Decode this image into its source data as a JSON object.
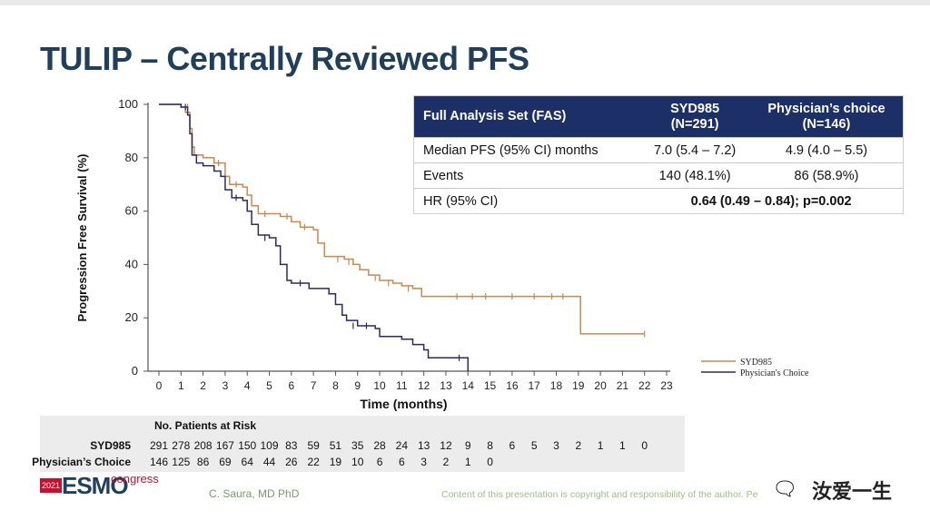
{
  "slide": {
    "title": "TULIP – Centrally Reviewed PFS",
    "author": "C. Saura, MD PhD",
    "copyright": "Content of this presentation is copyright and responsibility of the author. Pe",
    "copyright_tail": "r re-u",
    "logo_year": "2021",
    "logo_name": "ESMO",
    "logo_suffix": "congress",
    "watermark": "汝爱一生"
  },
  "table": {
    "headers": [
      "Full Analysis Set (FAS)",
      "SYD985\n(N=291)",
      "Physician’s choice\n(N=146)"
    ],
    "rows": [
      {
        "label": "Median PFS (95% CI) months",
        "syd": "7.0 (5.4 – 7.2)",
        "pc": "4.9 (4.0 – 5.5)"
      },
      {
        "label": "Events",
        "syd": "140 (48.1%)",
        "pc": "86 (58.9%)"
      },
      {
        "label": "HR (95% CI)",
        "merged": "0.64 (0.49 – 0.84); p=0.002"
      }
    ]
  },
  "chart_data": {
    "type": "line",
    "xlabel": "Time (months)",
    "ylabel": "Progression Free Survival (%)",
    "xlim": [
      0,
      23
    ],
    "ylim": [
      0,
      100
    ],
    "xticks": [
      0,
      1,
      2,
      3,
      4,
      5,
      6,
      7,
      8,
      9,
      10,
      11,
      12,
      13,
      14,
      15,
      16,
      17,
      18,
      19,
      20,
      21,
      22,
      23
    ],
    "yticks": [
      0,
      20,
      40,
      60,
      80,
      100
    ],
    "legend_position": "right",
    "series": [
      {
        "name": "SYD985",
        "color": "#c98a4b",
        "points": [
          [
            0,
            100
          ],
          [
            1,
            99
          ],
          [
            1.2,
            97
          ],
          [
            1.4,
            91
          ],
          [
            1.5,
            84
          ],
          [
            1.6,
            81
          ],
          [
            2,
            80
          ],
          [
            2.5,
            78
          ],
          [
            3,
            73
          ],
          [
            3.2,
            70
          ],
          [
            3.8,
            69
          ],
          [
            4,
            66
          ],
          [
            4.2,
            62
          ],
          [
            4.5,
            59
          ],
          [
            5.5,
            58
          ],
          [
            6,
            56
          ],
          [
            6.4,
            54
          ],
          [
            7,
            53
          ],
          [
            7.2,
            48
          ],
          [
            7.5,
            43
          ],
          [
            8.4,
            42
          ],
          [
            8.8,
            40
          ],
          [
            9.1,
            38
          ],
          [
            9.5,
            36
          ],
          [
            10,
            34
          ],
          [
            10.6,
            33
          ],
          [
            11,
            32
          ],
          [
            11.5,
            31
          ],
          [
            11.9,
            28
          ],
          [
            19.1,
            28
          ],
          [
            19.1,
            14
          ],
          [
            22,
            14
          ]
        ],
        "censors": [
          [
            1.3,
            99
          ],
          [
            2.7,
            78
          ],
          [
            3.5,
            70
          ],
          [
            4.8,
            59
          ],
          [
            5.8,
            58
          ],
          [
            6.6,
            54
          ],
          [
            8.1,
            42
          ],
          [
            8.6,
            41
          ],
          [
            9.8,
            35
          ],
          [
            10.4,
            33
          ],
          [
            11.3,
            31
          ],
          [
            11.9,
            30
          ],
          [
            13.5,
            28
          ],
          [
            14.2,
            28
          ],
          [
            14.8,
            28
          ],
          [
            16,
            28
          ],
          [
            17,
            28
          ],
          [
            17.8,
            28
          ],
          [
            18.3,
            28
          ],
          [
            22,
            14
          ]
        ]
      },
      {
        "name": "Physician's Choice",
        "color": "#2f2a5e",
        "points": [
          [
            0,
            100
          ],
          [
            1,
            99
          ],
          [
            1.3,
            96
          ],
          [
            1.4,
            89
          ],
          [
            1.5,
            81
          ],
          [
            1.7,
            78
          ],
          [
            2,
            77
          ],
          [
            2.5,
            75
          ],
          [
            2.8,
            73
          ],
          [
            3,
            68
          ],
          [
            3.3,
            65
          ],
          [
            3.8,
            64
          ],
          [
            4,
            60
          ],
          [
            4.2,
            55
          ],
          [
            4.5,
            51
          ],
          [
            5,
            50
          ],
          [
            5.3,
            47
          ],
          [
            5.5,
            40
          ],
          [
            5.8,
            34
          ],
          [
            6,
            33
          ],
          [
            6.8,
            31
          ],
          [
            7.7,
            29
          ],
          [
            8,
            25
          ],
          [
            8.3,
            21
          ],
          [
            8.5,
            19
          ],
          [
            9,
            17
          ],
          [
            9.8,
            16
          ],
          [
            10,
            13
          ],
          [
            11,
            12
          ],
          [
            11.5,
            10
          ],
          [
            12,
            8
          ],
          [
            12.2,
            5
          ],
          [
            14,
            5
          ],
          [
            14,
            0
          ]
        ],
        "censors": [
          [
            1.2,
            99
          ],
          [
            3.5,
            65
          ],
          [
            4.8,
            50
          ],
          [
            6.4,
            33
          ],
          [
            8.8,
            17
          ],
          [
            9.4,
            17
          ],
          [
            13.6,
            5
          ]
        ]
      }
    ],
    "risk_table": {
      "title": "No. Patients at Risk",
      "times": [
        0,
        1,
        2,
        3,
        4,
        5,
        6,
        7,
        8,
        9,
        10,
        11,
        12,
        13,
        14,
        15,
        16,
        17,
        18,
        19,
        20,
        21,
        22
      ],
      "rows": [
        {
          "label": "SYD985",
          "values": [
            "291",
            "278",
            "208",
            "167",
            "150",
            "109",
            "83",
            "59",
            "51",
            "35",
            "28",
            "24",
            "13",
            "12",
            "9",
            "8",
            "6",
            "5",
            "3",
            "2",
            "1",
            "1",
            "0"
          ]
        },
        {
          "label": "Physician’s Choice",
          "values": [
            "146",
            "125",
            "86",
            "69",
            "64",
            "44",
            "26",
            "22",
            "19",
            "10",
            "6",
            "6",
            "3",
            "2",
            "1",
            "0"
          ]
        }
      ]
    }
  }
}
